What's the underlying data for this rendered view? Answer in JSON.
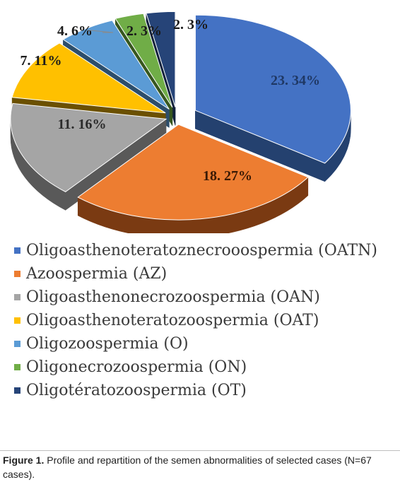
{
  "chart_data": {
    "type": "pie",
    "style": "3d-exploded",
    "slices": [
      {
        "label": "Oligoasthenoteratoznecrooospermia (OATN)",
        "value": 23,
        "percent": 34,
        "data_label": "23. 34%",
        "color": "#4472C4",
        "dark": "#24416f",
        "label_color": "#1f3864"
      },
      {
        "label": "Azoospermia (AZ)",
        "value": 18,
        "percent": 27,
        "data_label": "18. 27%",
        "color": "#ED7D31",
        "dark": "#7a3a12",
        "label_color": "#3a1a05"
      },
      {
        "label": "Oligoasthenonecrozoospermia (OAN)",
        "value": 11,
        "percent": 16,
        "data_label": "11. 16%",
        "color": "#A5A5A5",
        "dark": "#595959",
        "label_color": "#2b2b2b"
      },
      {
        "label": "Oligoasthenoteratozoospermia (OAT)",
        "value": 7,
        "percent": 11,
        "data_label": "7. 11%",
        "color": "#FFC000",
        "dark": "#6b5000",
        "label_color": "#1a1a1a"
      },
      {
        "label": "Oligozoospermia (O)",
        "value": 4,
        "percent": 6,
        "data_label": "4. 6%",
        "color": "#5B9BD5",
        "dark": "#2d4e6b",
        "label_color": "#1a1a1a"
      },
      {
        "label": "Oligonecrozoospermia (ON)",
        "value": 2,
        "percent": 3,
        "data_label": "2. 3%",
        "color": "#70AD47",
        "dark": "#37571f",
        "label_color": "#1a1a1a"
      },
      {
        "label": "Oligotératozoospermia (OT)",
        "value": 2,
        "percent": 3,
        "data_label": "2. 3%",
        "color": "#264478",
        "dark": "#11213b",
        "label_color": "#1a1a1a"
      }
    ],
    "legend_position": "bottom"
  },
  "caption": {
    "label": "Figure 1.",
    "text": "Profile and repartition of the semen abnormalities of selected cases (N=67 cases)."
  }
}
